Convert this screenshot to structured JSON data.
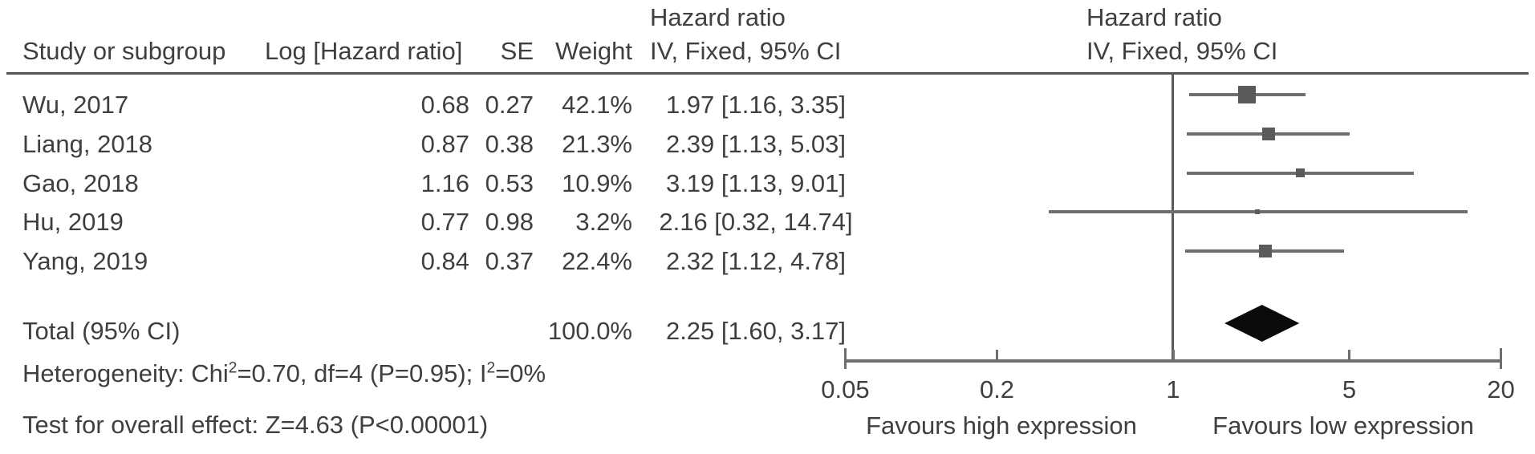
{
  "header": {
    "col_study": "Study or subgroup",
    "col_log_hr": "Log [Hazard ratio]",
    "col_se": "SE",
    "col_weight": "Weight",
    "left_hr_line1": "Hazard ratio",
    "left_hr_line2": "IV, Fixed, 95% CI",
    "right_hr_line1": "Hazard ratio",
    "right_hr_line2": "IV, Fixed, 95% CI"
  },
  "footer": {
    "het_pre": "Heterogeneity: Chi",
    "het_sup1": "2",
    "het_mid": "=0.70, df=4 (P=0.95); I",
    "het_sup2": "2",
    "het_post": "=0%",
    "overall": "Test for overall effect: Z=4.63 (P<0.00001)"
  },
  "chart_data": {
    "type": "scatter",
    "subtype": "forest-plot-meta-analysis",
    "effect_measure": "Hazard ratio",
    "model": "IV, Fixed, 95% CI",
    "x_scale": "log",
    "axis": {
      "min": 0.05,
      "max": 20,
      "null_line": 1,
      "ticks": [
        {
          "value": 0.05,
          "label": "0.05"
        },
        {
          "value": 0.2,
          "label": "0.2"
        },
        {
          "value": 1,
          "label": "1"
        },
        {
          "value": 5,
          "label": "5"
        },
        {
          "value": 20,
          "label": "20"
        }
      ]
    },
    "studies": [
      {
        "label": "Wu, 2017",
        "log_hr": "0.68",
        "se": "0.27",
        "weight": "42.1%",
        "weight_pct": 42.1,
        "hr": 1.97,
        "ci_low": 1.16,
        "ci_high": 3.35,
        "ci_text": "1.97 [1.16, 3.35]"
      },
      {
        "label": "Liang, 2018",
        "log_hr": "0.87",
        "se": "0.38",
        "weight": "21.3%",
        "weight_pct": 21.3,
        "hr": 2.39,
        "ci_low": 1.13,
        "ci_high": 5.03,
        "ci_text": "2.39 [1.13, 5.03]"
      },
      {
        "label": "Gao, 2018",
        "log_hr": "1.16",
        "se": "0.53",
        "weight": "10.9%",
        "weight_pct": 10.9,
        "hr": 3.19,
        "ci_low": 1.13,
        "ci_high": 9.01,
        "ci_text": "3.19 [1.13, 9.01]"
      },
      {
        "label": "Hu, 2019",
        "log_hr": "0.77",
        "se": "0.98",
        "weight": "3.2%",
        "weight_pct": 3.2,
        "hr": 2.16,
        "ci_low": 0.32,
        "ci_high": 14.74,
        "ci_text": "2.16 [0.32, 14.74]"
      },
      {
        "label": "Yang, 2019",
        "log_hr": "0.84",
        "se": "0.37",
        "weight": "22.4%",
        "weight_pct": 22.4,
        "hr": 2.32,
        "ci_low": 1.12,
        "ci_high": 4.78,
        "ci_text": "2.32 [1.12, 4.78]"
      }
    ],
    "total": {
      "label": "Total (95% CI)",
      "weight": "100.0%",
      "hr": 2.25,
      "ci_low": 1.6,
      "ci_high": 3.17,
      "ci_text": "2.25 [1.60, 3.17]"
    },
    "heterogeneity": {
      "chi2": 0.7,
      "df": 4,
      "p": "0.95",
      "i2": "0%"
    },
    "overall_effect": {
      "z": 4.63,
      "p": "<0.00001"
    },
    "favours_left": "Favours high expression",
    "favours_right": "Favours low expression"
  },
  "colors": {
    "text": "#3f3f3f",
    "line": "#6e6e6e",
    "square": "#5a5a5a",
    "diamond": "#0b0b0b",
    "rule": "#555555"
  }
}
